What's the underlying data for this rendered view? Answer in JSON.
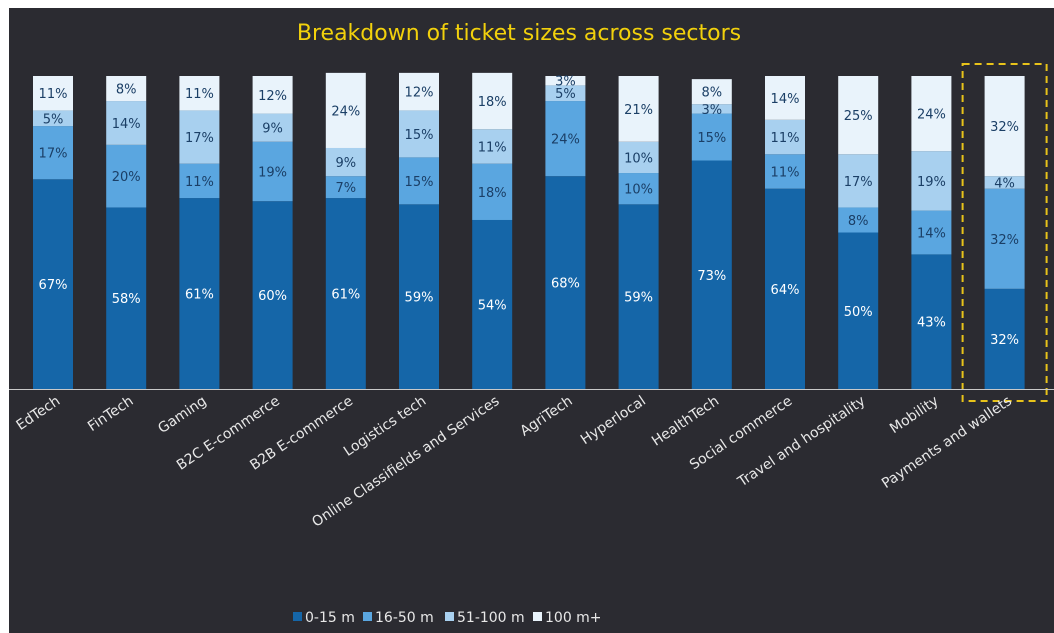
{
  "chart_data": {
    "type": "bar",
    "stacked": true,
    "orientation": "vertical",
    "title": "Breakdown of ticket sizes across sectors",
    "categories": [
      "EdTech",
      "FinTech",
      "Gaming",
      "B2C E-commerce",
      "B2B E-commerce",
      "Logistics tech",
      "Online Classifields and Services",
      "AgriTech",
      "Hyperlocal",
      "HealthTech",
      "Social commerce",
      "Travel and hospitality",
      "Mobility",
      "Payments and wallets"
    ],
    "series": [
      {
        "name": "0-15 m",
        "color": "#1566a8",
        "values": [
          67,
          58,
          61,
          60,
          61,
          59,
          54,
          68,
          59,
          73,
          64,
          50,
          43,
          32
        ]
      },
      {
        "name": "16-50 m",
        "color": "#5aa6e0",
        "values": [
          17,
          20,
          11,
          19,
          7,
          15,
          18,
          24,
          10,
          15,
          11,
          8,
          14,
          32
        ]
      },
      {
        "name": "51-100 m",
        "color": "#a8d0ef",
        "values": [
          5,
          14,
          17,
          9,
          9,
          15,
          11,
          5,
          10,
          3,
          11,
          17,
          19,
          4
        ]
      },
      {
        "name": "100 m+",
        "color": "#e9f3fb",
        "values": [
          11,
          8,
          11,
          12,
          24,
          12,
          18,
          3,
          21,
          8,
          14,
          25,
          24,
          32
        ]
      }
    ],
    "value_suffix": "%",
    "ylim": [
      0,
      100
    ],
    "grid": false,
    "legend_position": "bottom",
    "highlighted_category": "Payments and wallets",
    "highlight_color": "#e8c31a"
  }
}
